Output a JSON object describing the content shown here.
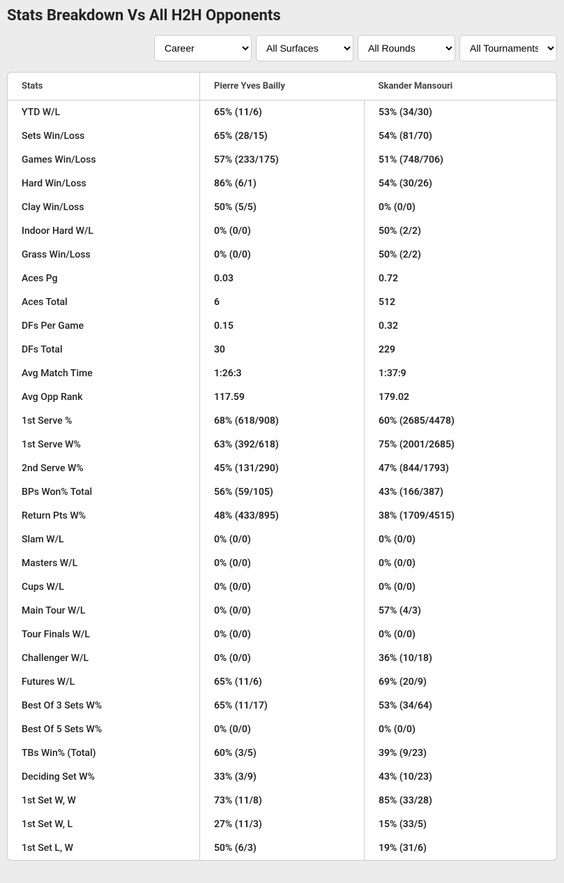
{
  "title": "Stats Breakdown Vs All H2H Opponents",
  "filters": {
    "career": {
      "selected": "Career"
    },
    "surface": {
      "selected": "All Surfaces"
    },
    "rounds": {
      "selected": "All Rounds"
    },
    "tournaments": {
      "selected": "All Tournaments"
    }
  },
  "table": {
    "headers": {
      "stats": "Stats",
      "player1": "Pierre Yves Bailly",
      "player2": "Skander Mansouri"
    },
    "rows": [
      {
        "stat": "YTD W/L",
        "p1": "65% (11/6)",
        "p2": "53% (34/30)"
      },
      {
        "stat": "Sets Win/Loss",
        "p1": "65% (28/15)",
        "p2": "54% (81/70)"
      },
      {
        "stat": "Games Win/Loss",
        "p1": "57% (233/175)",
        "p2": "51% (748/706)"
      },
      {
        "stat": "Hard Win/Loss",
        "p1": "86% (6/1)",
        "p2": "54% (30/26)"
      },
      {
        "stat": "Clay Win/Loss",
        "p1": "50% (5/5)",
        "p2": "0% (0/0)"
      },
      {
        "stat": "Indoor Hard W/L",
        "p1": "0% (0/0)",
        "p2": "50% (2/2)"
      },
      {
        "stat": "Grass Win/Loss",
        "p1": "0% (0/0)",
        "p2": "50% (2/2)"
      },
      {
        "stat": "Aces Pg",
        "p1": "0.03",
        "p2": "0.72"
      },
      {
        "stat": "Aces Total",
        "p1": "6",
        "p2": "512"
      },
      {
        "stat": "DFs Per Game",
        "p1": "0.15",
        "p2": "0.32"
      },
      {
        "stat": "DFs Total",
        "p1": "30",
        "p2": "229"
      },
      {
        "stat": "Avg Match Time",
        "p1": "1:26:3",
        "p2": "1:37:9"
      },
      {
        "stat": "Avg Opp Rank",
        "p1": "117.59",
        "p2": "179.02"
      },
      {
        "stat": "1st Serve %",
        "p1": "68% (618/908)",
        "p2": "60% (2685/4478)"
      },
      {
        "stat": "1st Serve W%",
        "p1": "63% (392/618)",
        "p2": "75% (2001/2685)"
      },
      {
        "stat": "2nd Serve W%",
        "p1": "45% (131/290)",
        "p2": "47% (844/1793)"
      },
      {
        "stat": "BPs Won% Total",
        "p1": "56% (59/105)",
        "p2": "43% (166/387)"
      },
      {
        "stat": "Return Pts W%",
        "p1": "48% (433/895)",
        "p2": "38% (1709/4515)"
      },
      {
        "stat": "Slam W/L",
        "p1": "0% (0/0)",
        "p2": "0% (0/0)"
      },
      {
        "stat": "Masters W/L",
        "p1": "0% (0/0)",
        "p2": "0% (0/0)"
      },
      {
        "stat": "Cups W/L",
        "p1": "0% (0/0)",
        "p2": "0% (0/0)"
      },
      {
        "stat": "Main Tour W/L",
        "p1": "0% (0/0)",
        "p2": "57% (4/3)"
      },
      {
        "stat": "Tour Finals W/L",
        "p1": "0% (0/0)",
        "p2": "0% (0/0)"
      },
      {
        "stat": "Challenger W/L",
        "p1": "0% (0/0)",
        "p2": "36% (10/18)"
      },
      {
        "stat": "Futures W/L",
        "p1": "65% (11/6)",
        "p2": "69% (20/9)"
      },
      {
        "stat": "Best Of 3 Sets W%",
        "p1": "65% (11/17)",
        "p2": "53% (34/64)"
      },
      {
        "stat": "Best Of 5 Sets W%",
        "p1": "0% (0/0)",
        "p2": "0% (0/0)"
      },
      {
        "stat": "TBs Win% (Total)",
        "p1": "60% (3/5)",
        "p2": "39% (9/23)"
      },
      {
        "stat": "Deciding Set W%",
        "p1": "33% (3/9)",
        "p2": "43% (10/23)"
      },
      {
        "stat": "1st Set W, W",
        "p1": "73% (11/8)",
        "p2": "85% (33/28)"
      },
      {
        "stat": "1st Set W, L",
        "p1": "27% (11/3)",
        "p2": "15% (33/5)"
      },
      {
        "stat": "1st Set L, W",
        "p1": "50% (6/3)",
        "p2": "19% (31/6)"
      }
    ]
  },
  "colors": {
    "page_bg": "#ececec",
    "table_bg": "#ffffff",
    "border": "#cccccc",
    "text": "#222222",
    "header_text": "#444444"
  }
}
